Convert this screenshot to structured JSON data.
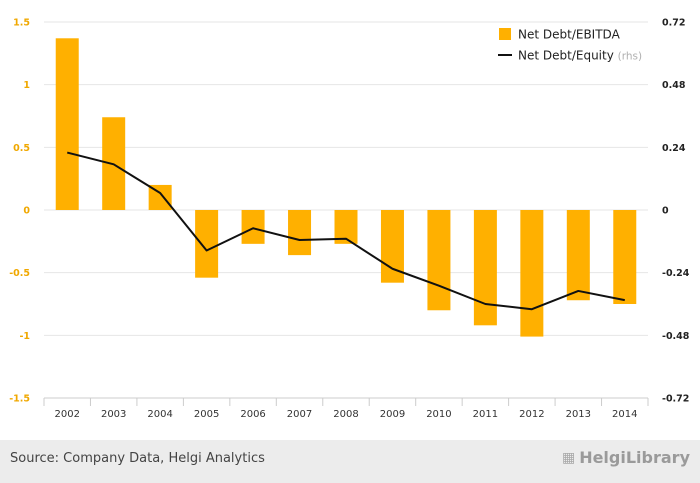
{
  "chart_data": {
    "type": "bar+line",
    "categories": [
      "2002",
      "2003",
      "2004",
      "2005",
      "2006",
      "2007",
      "2008",
      "2009",
      "2010",
      "2011",
      "2012",
      "2013",
      "2014"
    ],
    "series": [
      {
        "name": "Net Debt/EBITDA",
        "type": "bar",
        "axis": "left",
        "color": "#ffb000",
        "values": [
          1.37,
          0.74,
          0.2,
          -0.54,
          -0.27,
          -0.36,
          -0.27,
          -0.58,
          -0.8,
          -0.92,
          -1.01,
          -0.72,
          -0.75
        ]
      },
      {
        "name": "Net Debt/Equity",
        "type": "line",
        "axis": "right",
        "color": "#111111",
        "values": [
          0.22,
          0.175,
          0.065,
          -0.155,
          -0.07,
          -0.115,
          -0.11,
          -0.225,
          -0.29,
          -0.36,
          -0.38,
          -0.31,
          -0.345
        ]
      }
    ],
    "y_left": {
      "ticks": [
        1.5,
        1,
        0.5,
        0,
        -0.5,
        -1,
        -1.5
      ],
      "labels": [
        "1.5",
        "1",
        "0.5",
        "0",
        "-0.5",
        "-1",
        "-1.5"
      ],
      "range": [
        -1.5,
        1.5
      ]
    },
    "y_right": {
      "ticks": [
        0.72,
        0.48,
        0.24,
        0,
        -0.24,
        -0.48,
        -0.72
      ],
      "labels": [
        "0.72",
        "0.48",
        "0.24",
        "0",
        "-0.24",
        "-0.48",
        "-0.72"
      ],
      "range": [
        -0.72,
        0.72
      ]
    },
    "legend": {
      "placement": "top-right",
      "rhs_suffix": "(rhs)"
    },
    "grid": true
  },
  "footer": {
    "source": "Source: Company Data, Helgi Analytics",
    "logo_text": "HelgiLibrary"
  }
}
